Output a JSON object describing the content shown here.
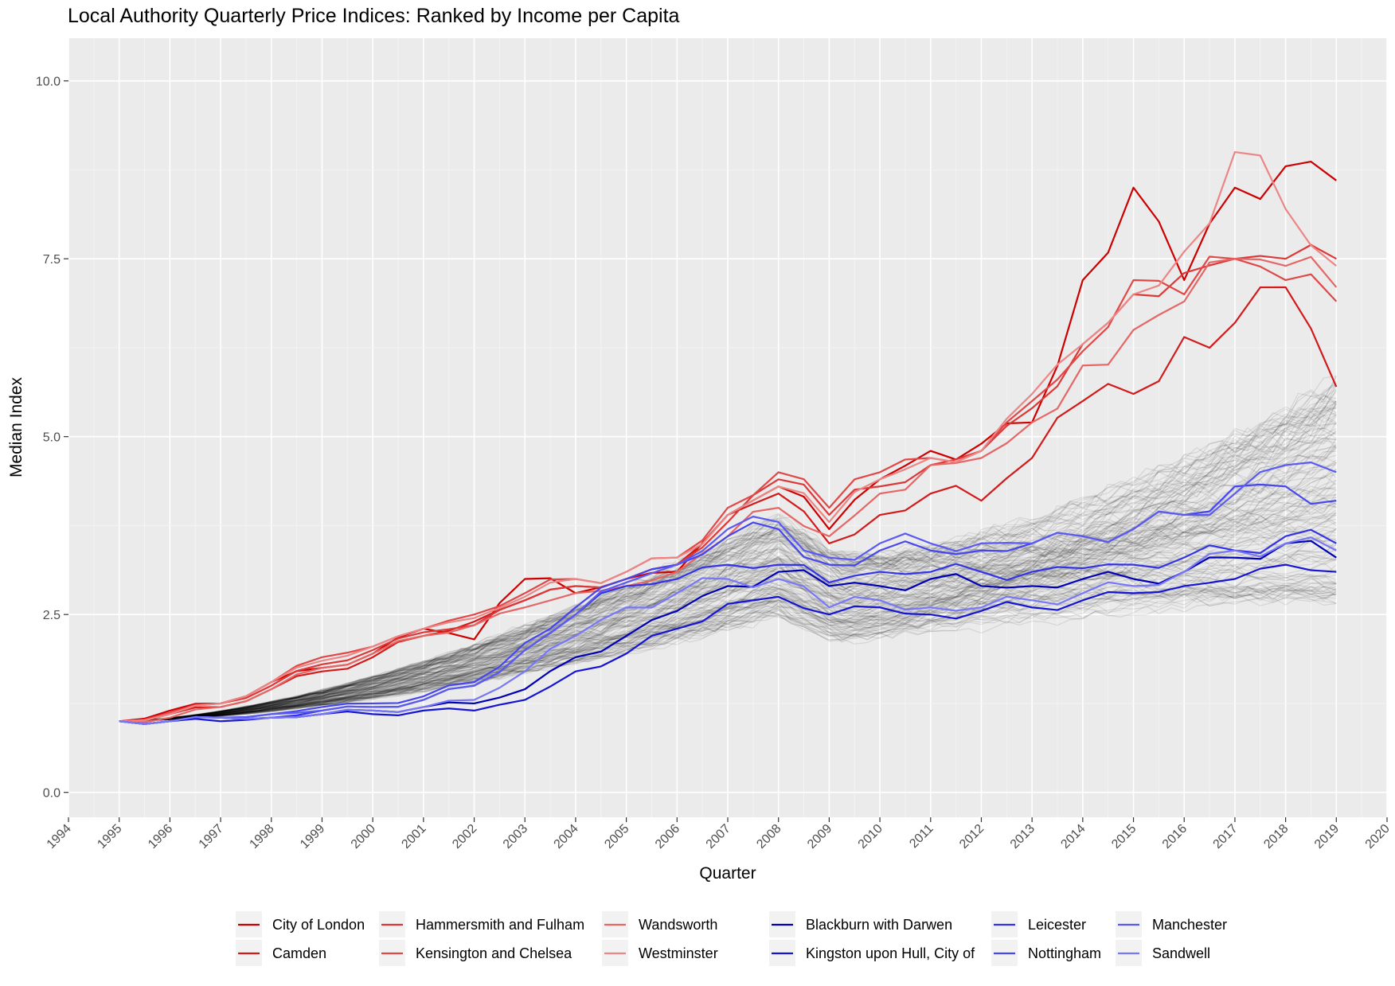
{
  "chart_data": {
    "type": "line",
    "title": "Local Authority Quarterly Price Indices: Ranked by Income per Capita",
    "xlabel": "Quarter",
    "ylabel": "Median Index",
    "xlim": [
      1994,
      2020
    ],
    "ylim": [
      -0.35,
      10.6
    ],
    "x_ticks": [
      "1994",
      "1995",
      "1996",
      "1997",
      "1998",
      "1999",
      "2000",
      "2001",
      "2002",
      "2003",
      "2004",
      "2005",
      "2006",
      "2007",
      "2008",
      "2009",
      "2010",
      "2011",
      "2012",
      "2013",
      "2014",
      "2015",
      "2016",
      "2017",
      "2018",
      "2019",
      "2020"
    ],
    "y_ticks": [
      "0.0",
      "2.5",
      "5.0",
      "7.5",
      "10.0"
    ],
    "grid": true,
    "legend_position": "bottom",
    "background_series": "all other local authorities (grey)",
    "x": [
      1995,
      1996,
      1997,
      1998,
      1999,
      2000,
      2001,
      2002,
      2003,
      2004,
      2005,
      2006,
      2007,
      2008,
      2009,
      2010,
      2011,
      2012,
      2013,
      2014,
      2015,
      2016,
      2017,
      2018,
      2019
    ],
    "series": [
      {
        "name": "City of London",
        "color": "#cc0000",
        "values": [
          1.0,
          1.15,
          1.25,
          1.55,
          1.75,
          1.95,
          2.3,
          2.15,
          3.0,
          2.8,
          3.0,
          3.1,
          3.9,
          4.3,
          3.7,
          4.4,
          4.8,
          4.9,
          5.2,
          7.2,
          8.5,
          7.2,
          8.5,
          8.8,
          8.6
        ]
      },
      {
        "name": "Camden",
        "color": "#d21a1a",
        "values": [
          1.0,
          1.1,
          1.2,
          1.45,
          1.7,
          1.9,
          2.2,
          2.4,
          2.7,
          2.9,
          3.0,
          3.2,
          3.9,
          4.2,
          3.5,
          3.9,
          4.2,
          4.1,
          4.7,
          5.5,
          5.6,
          6.4,
          6.6,
          7.1,
          5.7
        ]
      },
      {
        "name": "Hammersmith and Fulham",
        "color": "#dc3838",
        "values": [
          1.0,
          1.1,
          1.25,
          1.5,
          1.8,
          2.0,
          2.25,
          2.35,
          2.7,
          2.9,
          3.0,
          3.2,
          3.8,
          4.4,
          3.9,
          4.3,
          4.6,
          4.8,
          5.4,
          6.3,
          7.0,
          7.3,
          7.5,
          7.5,
          7.5
        ]
      },
      {
        "name": "Kensington and Chelsea",
        "color": "#e04848",
        "values": [
          1.0,
          1.12,
          1.25,
          1.55,
          1.9,
          2.05,
          2.3,
          2.5,
          2.8,
          3.0,
          3.1,
          3.3,
          4.0,
          4.5,
          4.0,
          4.5,
          4.7,
          4.8,
          5.5,
          6.2,
          7.2,
          7.0,
          7.5,
          7.2,
          6.9
        ]
      },
      {
        "name": "Wandsworth",
        "color": "#e66666",
        "values": [
          1.0,
          1.05,
          1.2,
          1.45,
          1.75,
          1.95,
          2.2,
          2.35,
          2.6,
          2.8,
          2.9,
          3.1,
          3.6,
          4.0,
          3.6,
          4.2,
          4.6,
          4.7,
          5.2,
          6.0,
          6.5,
          6.9,
          7.5,
          7.4,
          7.1
        ]
      },
      {
        "name": "Westminster",
        "color": "#ec8686",
        "values": [
          1.0,
          1.1,
          1.25,
          1.55,
          1.85,
          2.05,
          2.3,
          2.45,
          2.75,
          3.0,
          3.1,
          3.3,
          3.9,
          4.3,
          3.8,
          4.4,
          4.7,
          4.8,
          5.6,
          6.3,
          7.0,
          7.6,
          9.0,
          8.2,
          7.4
        ]
      },
      {
        "name": "Blackburn with Darwen",
        "color": "#0000b4",
        "values": [
          1.0,
          1.0,
          1.05,
          1.05,
          1.1,
          1.15,
          1.2,
          1.25,
          1.45,
          1.9,
          2.2,
          2.55,
          2.9,
          3.1,
          2.9,
          2.9,
          3.0,
          2.9,
          2.9,
          3.0,
          3.0,
          3.1,
          3.3,
          3.5,
          3.3
        ]
      },
      {
        "name": "Kingston upon Hull, City of",
        "color": "#1414d2",
        "values": [
          1.0,
          1.0,
          1.0,
          1.05,
          1.1,
          1.1,
          1.15,
          1.15,
          1.3,
          1.7,
          1.95,
          2.3,
          2.65,
          2.75,
          2.5,
          2.6,
          2.5,
          2.55,
          2.6,
          2.7,
          2.8,
          2.9,
          3.0,
          3.2,
          3.1
        ]
      },
      {
        "name": "Leicester",
        "color": "#3232e6",
        "values": [
          1.0,
          1.0,
          1.05,
          1.05,
          1.15,
          1.2,
          1.3,
          1.5,
          2.0,
          2.5,
          2.9,
          3.0,
          3.2,
          3.2,
          2.95,
          3.1,
          3.1,
          3.1,
          3.1,
          3.15,
          3.2,
          3.3,
          3.4,
          3.6,
          3.5
        ]
      },
      {
        "name": "Nottingham",
        "color": "#4646ee",
        "values": [
          1.0,
          1.0,
          1.05,
          1.1,
          1.2,
          1.25,
          1.35,
          1.55,
          2.1,
          2.6,
          3.0,
          3.2,
          3.6,
          3.7,
          3.2,
          3.4,
          3.4,
          3.4,
          3.5,
          3.6,
          3.7,
          3.9,
          4.3,
          4.3,
          4.1
        ]
      },
      {
        "name": "Manchester",
        "color": "#5a5af2",
        "values": [
          1.0,
          1.0,
          1.05,
          1.1,
          1.15,
          1.2,
          1.3,
          1.5,
          2.0,
          2.5,
          2.95,
          3.2,
          3.7,
          3.8,
          3.3,
          3.5,
          3.5,
          3.5,
          3.5,
          3.6,
          3.7,
          3.9,
          4.2,
          4.6,
          4.5
        ]
      },
      {
        "name": "Sandwell",
        "color": "#7878f6",
        "values": [
          1.0,
          1.0,
          1.05,
          1.05,
          1.1,
          1.15,
          1.2,
          1.3,
          1.7,
          2.2,
          2.6,
          2.8,
          3.0,
          3.0,
          2.6,
          2.7,
          2.6,
          2.6,
          2.7,
          2.8,
          2.9,
          3.1,
          3.4,
          3.5,
          3.4
        ]
      }
    ]
  }
}
